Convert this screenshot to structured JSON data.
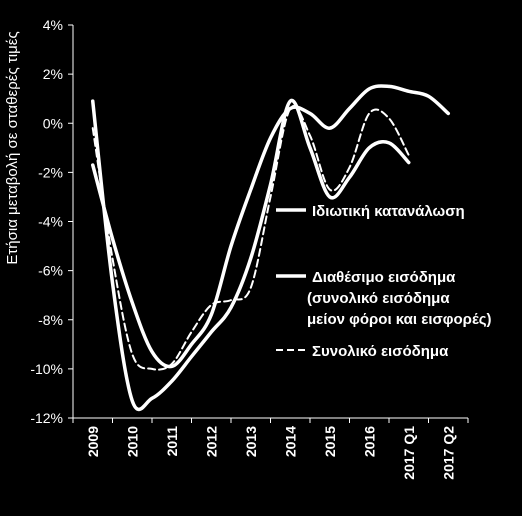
{
  "chart_data": {
    "type": "line",
    "ylabel": "Ετήσια μεταβολή σε σταθερές τιμές",
    "ylim": [
      -12,
      4
    ],
    "y_ticks": [
      -12,
      -10,
      -8,
      -6,
      -4,
      -2,
      0,
      2,
      4
    ],
    "y_tick_labels": [
      "-12%",
      "-10%",
      "-8%",
      "-6%",
      "-4%",
      "-2%",
      "0%",
      "2%",
      "4%"
    ],
    "categories": [
      "2009",
      "2010",
      "2011",
      "2012",
      "2013",
      "2014",
      "2015",
      "2016",
      "2017 Q1",
      "2017 Q2"
    ],
    "grid": false,
    "legend_position": "right",
    "colors": {
      "background": "#000000",
      "foreground": "#ffffff"
    },
    "series": [
      {
        "name": "Ιδιωτική κατανάλωση",
        "style": "solid",
        "x": [
          0,
          0.5,
          1,
          1.5,
          2,
          2.5,
          3,
          3.5,
          4,
          4.5,
          5,
          5.5,
          6,
          6.5,
          7,
          7.5,
          8,
          8.5,
          9
        ],
        "values": [
          -1.7,
          -4.7,
          -7.3,
          -9.3,
          -9.9,
          -9.0,
          -7.8,
          -5.0,
          -2.7,
          -0.6,
          0.6,
          0.4,
          -0.2,
          0.6,
          1.4,
          1.5,
          1.3,
          1.1,
          0.4
        ]
      },
      {
        "name": "Διαθέσιμο εισόδημα (συνολικό εισόδημα μείον φόροι και εισφορές)",
        "style": "solid",
        "x": [
          0,
          0.5,
          1,
          1.5,
          2,
          2.5,
          3,
          3.5,
          4,
          4.5,
          5,
          5.5,
          6,
          6.5,
          7,
          7.5,
          8
        ],
        "values": [
          0.9,
          -6.5,
          -11.3,
          -11.2,
          -10.5,
          -9.5,
          -8.5,
          -7.5,
          -5.5,
          -2.5,
          0.9,
          -1.0,
          -3.0,
          -2.2,
          -1.0,
          -0.8,
          -1.6
        ]
      },
      {
        "name": "Συνολικό εισόδημα",
        "style": "dashed",
        "x": [
          0,
          0.5,
          1,
          1.5,
          2,
          2.5,
          3,
          3.5,
          4,
          4.5,
          5,
          5.5,
          6,
          6.5,
          7,
          7.5,
          8
        ],
        "values": [
          -0.2,
          -5.5,
          -9.4,
          -10.0,
          -9.8,
          -8.5,
          -7.4,
          -7.2,
          -6.7,
          -3.0,
          0.6,
          -0.5,
          -2.7,
          -1.8,
          0.4,
          0.2,
          -1.3
        ]
      }
    ]
  }
}
